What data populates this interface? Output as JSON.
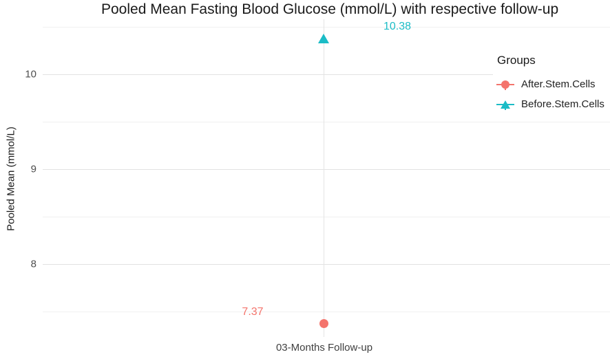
{
  "chart_data": {
    "type": "scatter",
    "title": "Pooled Mean Fasting Blood Glucose (mmol/L) with respective follow-up",
    "xlabel": "",
    "ylabel": "Pooled Mean (mmol/L)",
    "categories": [
      "03-Months Follow-up"
    ],
    "ylim": [
      7.23,
      10.58
    ],
    "y_ticks": [
      8,
      9,
      10
    ],
    "y_minor_ticks": [
      7.5,
      8.5,
      9.5,
      10.5
    ],
    "grid": true,
    "legend": {
      "title": "Groups",
      "position": "inside-top-right",
      "entries": [
        {
          "label": "After.Stem.Cells",
          "marker": "circle",
          "color": "#F4746C"
        },
        {
          "label": "Before.Stem.Cells",
          "marker": "triangle",
          "color": "#1BBCC6"
        }
      ]
    },
    "series": [
      {
        "name": "After.Stem.Cells",
        "marker": "circle",
        "color": "#F4746C",
        "category": "03-Months Follow-up",
        "value": 7.37,
        "label": "7.37"
      },
      {
        "name": "Before.Stem.Cells",
        "marker": "triangle",
        "color": "#1BBCC6",
        "category": "03-Months Follow-up",
        "value": 10.38,
        "label": "10.38"
      }
    ],
    "colors": {
      "after_stem_cells": "#F4746C",
      "before_stem_cells": "#1BBCC6",
      "grid_major": "#e2e2e2",
      "grid_minor": "#f0f0f0",
      "axis_text": "#4d4d4d"
    }
  }
}
